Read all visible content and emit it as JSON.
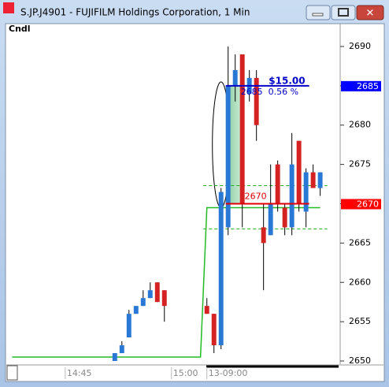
{
  "window": {
    "title": "S.JP.J4901 - FUJIFILM Holdings Corporation, 1 Min"
  },
  "chart_data": {
    "type": "candlestick",
    "label": "Cndl",
    "categories": [
      "14:45",
      null,
      null,
      null,
      null,
      null,
      null,
      null,
      null,
      null,
      null,
      null,
      null,
      null,
      null,
      "15:00",
      null,
      null,
      null,
      null,
      "13-09:00",
      null,
      null,
      null,
      null,
      null,
      null,
      null,
      null,
      null,
      null,
      null,
      null,
      null,
      null,
      null,
      null
    ],
    "open": [
      null,
      null,
      null,
      null,
      null,
      null,
      null,
      2650,
      2651,
      2653,
      2656,
      2657,
      2658,
      2660,
      2659,
      null,
      null,
      null,
      null,
      null,
      2657,
      2656,
      2652,
      2667,
      2685,
      2689,
      2684,
      2686,
      2667,
      2666,
      2675,
      2669.5,
      2667,
      2678,
      2669,
      2674,
      2672
    ],
    "high": [
      null,
      null,
      null,
      null,
      null,
      null,
      null,
      2651,
      2652.5,
      2656.5,
      2657,
      2659,
      2660,
      2660,
      2659,
      null,
      null,
      null,
      null,
      null,
      2658,
      2656,
      2672,
      2690,
      2689,
      2689,
      2687,
      2687,
      2670,
      2675,
      2675.5,
      2670,
      2679,
      2678,
      2674.5,
      2675,
      2674
    ],
    "low": [
      null,
      null,
      null,
      null,
      null,
      null,
      null,
      2650,
      2651,
      2653,
      2656,
      2657,
      2658,
      2657.5,
      2655,
      null,
      null,
      null,
      null,
      null,
      2656,
      2651,
      2651.5,
      2666,
      2683,
      2667,
      2683,
      2678,
      2659,
      2666,
      2669,
      2666,
      2666,
      2669,
      2667,
      2672,
      2671
    ],
    "close": [
      null,
      null,
      null,
      null,
      null,
      null,
      null,
      2651,
      2652,
      2656,
      2657,
      2658,
      2659,
      2657.5,
      2657,
      null,
      null,
      null,
      null,
      null,
      2656,
      2652,
      2671.5,
      2685,
      2687,
      2670,
      2686,
      2680,
      2665,
      2670,
      2670,
      2667,
      2675,
      2670,
      2674,
      2672,
      2674
    ],
    "up_color": "#2a78d6",
    "down_color": "#d42121",
    "xlim": [
      -8.1,
      38.6
    ],
    "ylim": [
      2649.6,
      2691.2
    ],
    "yticks": [
      2650,
      2655,
      2660,
      2665,
      2670,
      2675,
      2680,
      2685,
      2690
    ],
    "price_tags": [
      {
        "value": 2685,
        "color": "#0000ff"
      },
      {
        "value": 2670,
        "color": "#ff0000"
      }
    ],
    "measure": {
      "from": 2670,
      "to": 2685,
      "amount": "$15.00",
      "label": "2685  0.56 %",
      "color_from": "#e00000",
      "color_to": "#0000c8"
    },
    "levels": {
      "values": [
        2672.3,
        2666.8
      ],
      "color": "#22aa22"
    },
    "overlay": {
      "x": [
        -7.5,
        19.1,
        20,
        36
      ],
      "values": [
        2650.5,
        2650.5,
        2669.5,
        2669.5
      ],
      "color": "#22bb22"
    }
  }
}
